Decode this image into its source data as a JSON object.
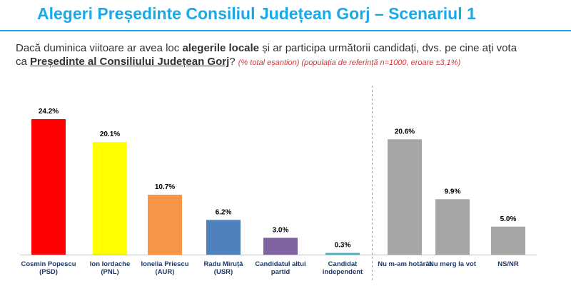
{
  "title": "Alegeri Președinte Consiliul Județean Gorj – Scenariul 1",
  "question": {
    "line1_start": "Dacă duminica viitoare ar avea loc ",
    "line1_bold": "alegerile locale",
    "line1_end": " și ar participa următorii candidați, dvs. pe cine ați vota",
    "line2_start": "ca ",
    "line2_bold": "Președinte al Consiliului Județean Gorj",
    "line2_q": "?",
    "note": "(% total eșantion) (populația de referință n=1000, eroare ±3,1%)"
  },
  "chart_data": {
    "type": "bar",
    "categories": [
      [
        "Cosmin Popescu",
        "(PSD)"
      ],
      [
        "Ion Iordache",
        "(PNL)"
      ],
      [
        "Ionelia Priescu",
        "(AUR)"
      ],
      [
        "Radu Miruță",
        "(USR)"
      ],
      [
        "Candidatul altui",
        "partid"
      ],
      [
        "Candidat",
        "independent"
      ],
      [
        "Nu m-am hotărât"
      ],
      [
        "Nu merg la vot"
      ],
      [
        "NS/NR"
      ]
    ],
    "values": [
      24.2,
      20.1,
      10.7,
      6.2,
      3.0,
      0.3,
      20.6,
      9.9,
      5.0
    ],
    "value_labels": [
      "24.2%",
      "20.1%",
      "10.7%",
      "6.2%",
      "3.0%",
      "0.3%",
      "20.6%",
      "9.9%",
      "5.0%"
    ],
    "colors": [
      "#ff0000",
      "#ffff00",
      "#f79646",
      "#4f81bd",
      "#8064a2",
      "#4bacc6",
      "#a6a6a6",
      "#a6a6a6",
      "#a6a6a6"
    ],
    "separator_after_index": 5,
    "ylim": [
      0,
      25
    ]
  }
}
